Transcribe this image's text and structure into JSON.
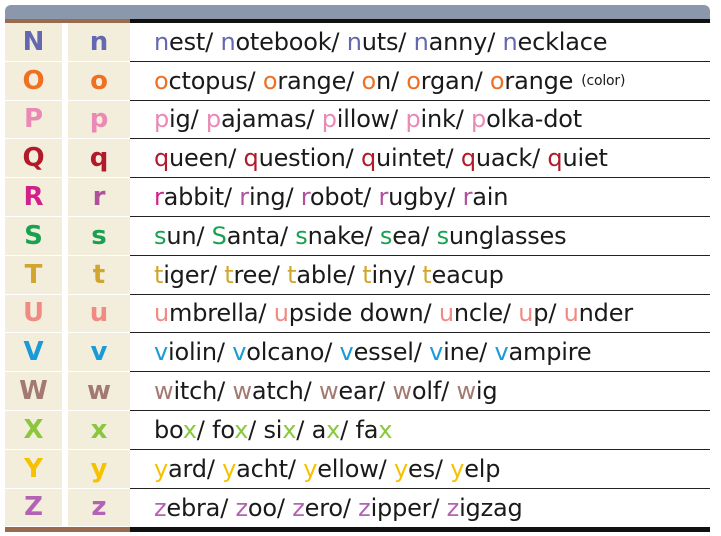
{
  "rows": [
    {
      "upper": "N",
      "lower": "n",
      "color": "#6468b0",
      "color2": "#6468b0",
      "words": [
        [
          "",
          "n",
          "est"
        ],
        [
          "",
          "n",
          "otebook"
        ],
        [
          "",
          "n",
          "uts"
        ],
        [
          "",
          "n",
          "anny"
        ],
        [
          "",
          "n",
          "ecklace"
        ]
      ]
    },
    {
      "upper": "O",
      "lower": "o",
      "color": "#f07022",
      "color2": "#f07022",
      "words": [
        [
          "",
          "o",
          "ctopus"
        ],
        [
          "",
          "o",
          "range"
        ],
        [
          "",
          "o",
          "n"
        ],
        [
          "",
          "o",
          "rgan"
        ],
        [
          "",
          "o",
          "range"
        ]
      ],
      "note": "(color)"
    },
    {
      "upper": "P",
      "lower": "p",
      "color": "#ea88b6",
      "color2": "#ea88b6",
      "words": [
        [
          "",
          "p",
          "ig"
        ],
        [
          "",
          "p",
          "ajamas"
        ],
        [
          "",
          "p",
          "illow"
        ],
        [
          "",
          "p",
          "ink"
        ],
        [
          "",
          "p",
          "olka-dot"
        ]
      ]
    },
    {
      "upper": "Q",
      "lower": "q",
      "color": "#b21a2a",
      "color2": "#b21a2a",
      "words": [
        [
          "",
          "q",
          "ueen"
        ],
        [
          "",
          "q",
          "uestion"
        ],
        [
          "",
          "q",
          "uintet"
        ],
        [
          "",
          "q",
          "uack"
        ],
        [
          "",
          "q",
          "uiet"
        ]
      ]
    },
    {
      "upper": "R",
      "lower": "r",
      "color": "#d31f8a",
      "color2": "#b0509c",
      "words": [
        [
          "",
          "r",
          "abbit"
        ],
        [
          "",
          "r",
          "ing"
        ],
        [
          "",
          "r",
          "obot"
        ],
        [
          "",
          "r",
          "ugby"
        ],
        [
          "",
          "r",
          "ain"
        ]
      ]
    },
    {
      "upper": "S",
      "lower": "s",
      "color": "#17a150",
      "color2": "#17a150",
      "words": [
        [
          "",
          "s",
          "un"
        ],
        [
          "",
          "S",
          "anta"
        ],
        [
          "",
          "s",
          "nake"
        ],
        [
          "",
          "s",
          "ea"
        ],
        [
          "",
          "s",
          "unglasses"
        ]
      ]
    },
    {
      "upper": "T",
      "lower": "t",
      "color": "#d2a52e",
      "color2": "#d2a52e",
      "words": [
        [
          "",
          "t",
          "iger"
        ],
        [
          "",
          "t",
          "ree"
        ],
        [
          "",
          "t",
          "able"
        ],
        [
          "",
          "t",
          "iny"
        ],
        [
          "",
          "t",
          "eacup"
        ]
      ]
    },
    {
      "upper": "U",
      "lower": "u",
      "color": "#f08a82",
      "color2": "#f08a82",
      "words": [
        [
          "",
          "u",
          "mbrella"
        ],
        [
          "",
          "u",
          "pside down"
        ],
        [
          "",
          "u",
          "ncle"
        ],
        [
          "",
          "u",
          "p"
        ],
        [
          "",
          "u",
          "nder"
        ]
      ]
    },
    {
      "upper": "V",
      "lower": "v",
      "color": "#1b9ad8",
      "color2": "#1b9ad8",
      "words": [
        [
          "",
          "v",
          "iolin"
        ],
        [
          "",
          "v",
          "olcano"
        ],
        [
          "",
          "v",
          "essel"
        ],
        [
          "",
          "v",
          "ine"
        ],
        [
          "",
          "v",
          "ampire"
        ]
      ]
    },
    {
      "upper": "W",
      "lower": "w",
      "color": "#a27a72",
      "color2": "#a27a72",
      "words": [
        [
          "",
          "w",
          "itch"
        ],
        [
          "",
          "w",
          "atch"
        ],
        [
          "",
          "w",
          "ear"
        ],
        [
          "",
          "w",
          "olf"
        ],
        [
          "",
          "w",
          "ig"
        ]
      ]
    },
    {
      "upper": "X",
      "lower": "x",
      "color": "#8cc63e",
      "color2": "#8cc63e",
      "words": [
        [
          "bo",
          "x",
          ""
        ],
        [
          "fo",
          "x",
          ""
        ],
        [
          "si",
          "x",
          ""
        ],
        [
          "a",
          "x",
          ""
        ],
        [
          "fa",
          "x",
          ""
        ]
      ]
    },
    {
      "upper": "Y",
      "lower": "y",
      "color": "#f6c200",
      "color2": "#f6c200",
      "words": [
        [
          "",
          "y",
          "ard"
        ],
        [
          "",
          "y",
          "acht"
        ],
        [
          "",
          "y",
          "ellow"
        ],
        [
          "",
          "y",
          "es"
        ],
        [
          "",
          "y",
          "elp"
        ]
      ]
    },
    {
      "upper": "Z",
      "lower": "z",
      "color": "#b462b4",
      "color2": "#b462b4",
      "words": [
        [
          "",
          "z",
          "ebra"
        ],
        [
          "",
          "z",
          "oo"
        ],
        [
          "",
          "z",
          "ero"
        ],
        [
          "",
          "z",
          "ipper"
        ],
        [
          "",
          "z",
          "igzag"
        ]
      ]
    }
  ]
}
